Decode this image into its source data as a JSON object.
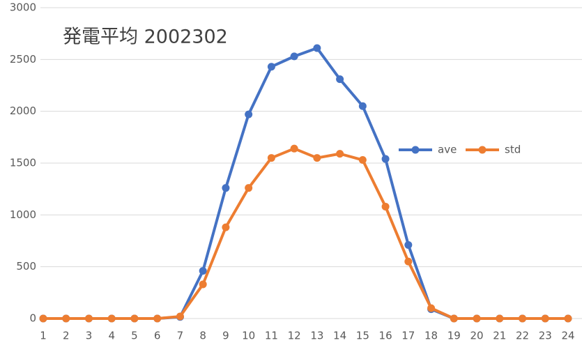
{
  "chart_data": {
    "type": "line",
    "title": "発電平均 2002302",
    "categories": [
      1,
      2,
      3,
      4,
      5,
      6,
      7,
      8,
      9,
      10,
      11,
      12,
      13,
      14,
      15,
      16,
      17,
      18,
      19,
      20,
      21,
      22,
      23,
      24
    ],
    "series": [
      {
        "name": "ave",
        "color": "#4472c4",
        "values": [
          0,
          0,
          0,
          0,
          0,
          0,
          15,
          460,
          1260,
          1970,
          2430,
          2530,
          2610,
          2310,
          2050,
          1540,
          710,
          90,
          0,
          0,
          0,
          0,
          0,
          0
        ]
      },
      {
        "name": "std",
        "color": "#ed7d31",
        "values": [
          0,
          0,
          0,
          0,
          0,
          0,
          20,
          330,
          880,
          1260,
          1550,
          1640,
          1550,
          1590,
          1530,
          1080,
          550,
          100,
          0,
          0,
          0,
          0,
          0,
          0
        ]
      }
    ],
    "ylim": [
      0,
      3000
    ],
    "yticks": [
      0,
      500,
      1000,
      1500,
      2000,
      2500,
      3000
    ],
    "grid": true,
    "legend": "right"
  }
}
